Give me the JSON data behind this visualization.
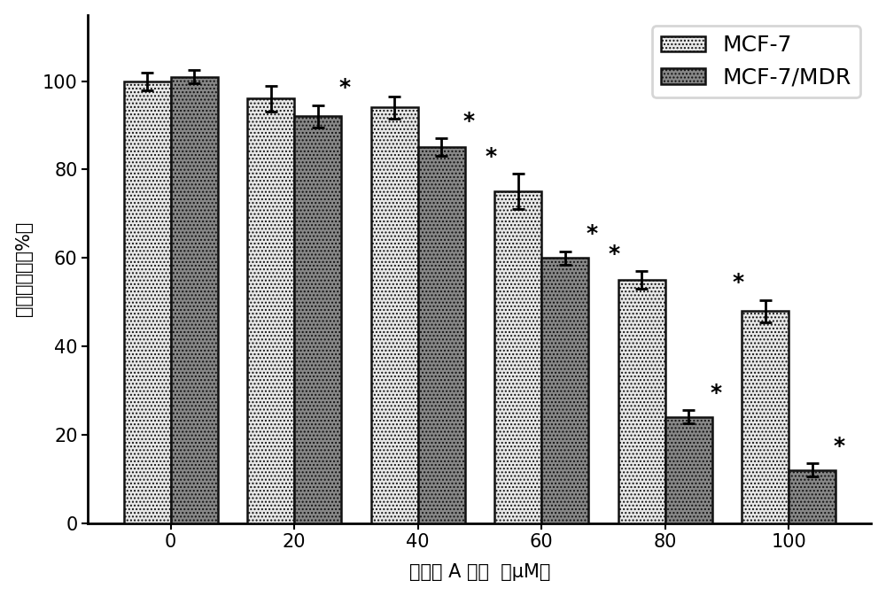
{
  "categories": [
    0,
    20,
    40,
    60,
    80,
    100
  ],
  "mcf7_values": [
    100,
    96,
    94,
    75,
    55,
    48
  ],
  "mcf7_errors": [
    2.0,
    3.0,
    2.5,
    4.0,
    2.0,
    2.5
  ],
  "mdr_values": [
    101,
    92,
    85,
    60,
    24,
    12
  ],
  "mdr_errors": [
    1.5,
    2.5,
    2.0,
    1.5,
    1.5,
    1.5
  ],
  "mcf7_color": "#e8e8e8",
  "mdr_color": "#888888",
  "bar_edgecolor": "#111111",
  "bar_width": 0.38,
  "xlabel": "丹酟酸 A 浓度  （μM）",
  "ylabel": "细胞生存率（%）",
  "ylim": [
    0,
    115
  ],
  "yticks": [
    0,
    20,
    40,
    60,
    80,
    100
  ],
  "legend_labels": [
    "MCF-7",
    "MCF-7/MDR"
  ],
  "star_mdr_indices": [
    1,
    2,
    3,
    4,
    5
  ],
  "star_mcf7_indices": [
    3,
    4,
    5
  ],
  "background_color": "#ffffff",
  "axis_fontsize": 15,
  "tick_fontsize": 15,
  "legend_fontsize": 18,
  "star_fontsize": 18
}
